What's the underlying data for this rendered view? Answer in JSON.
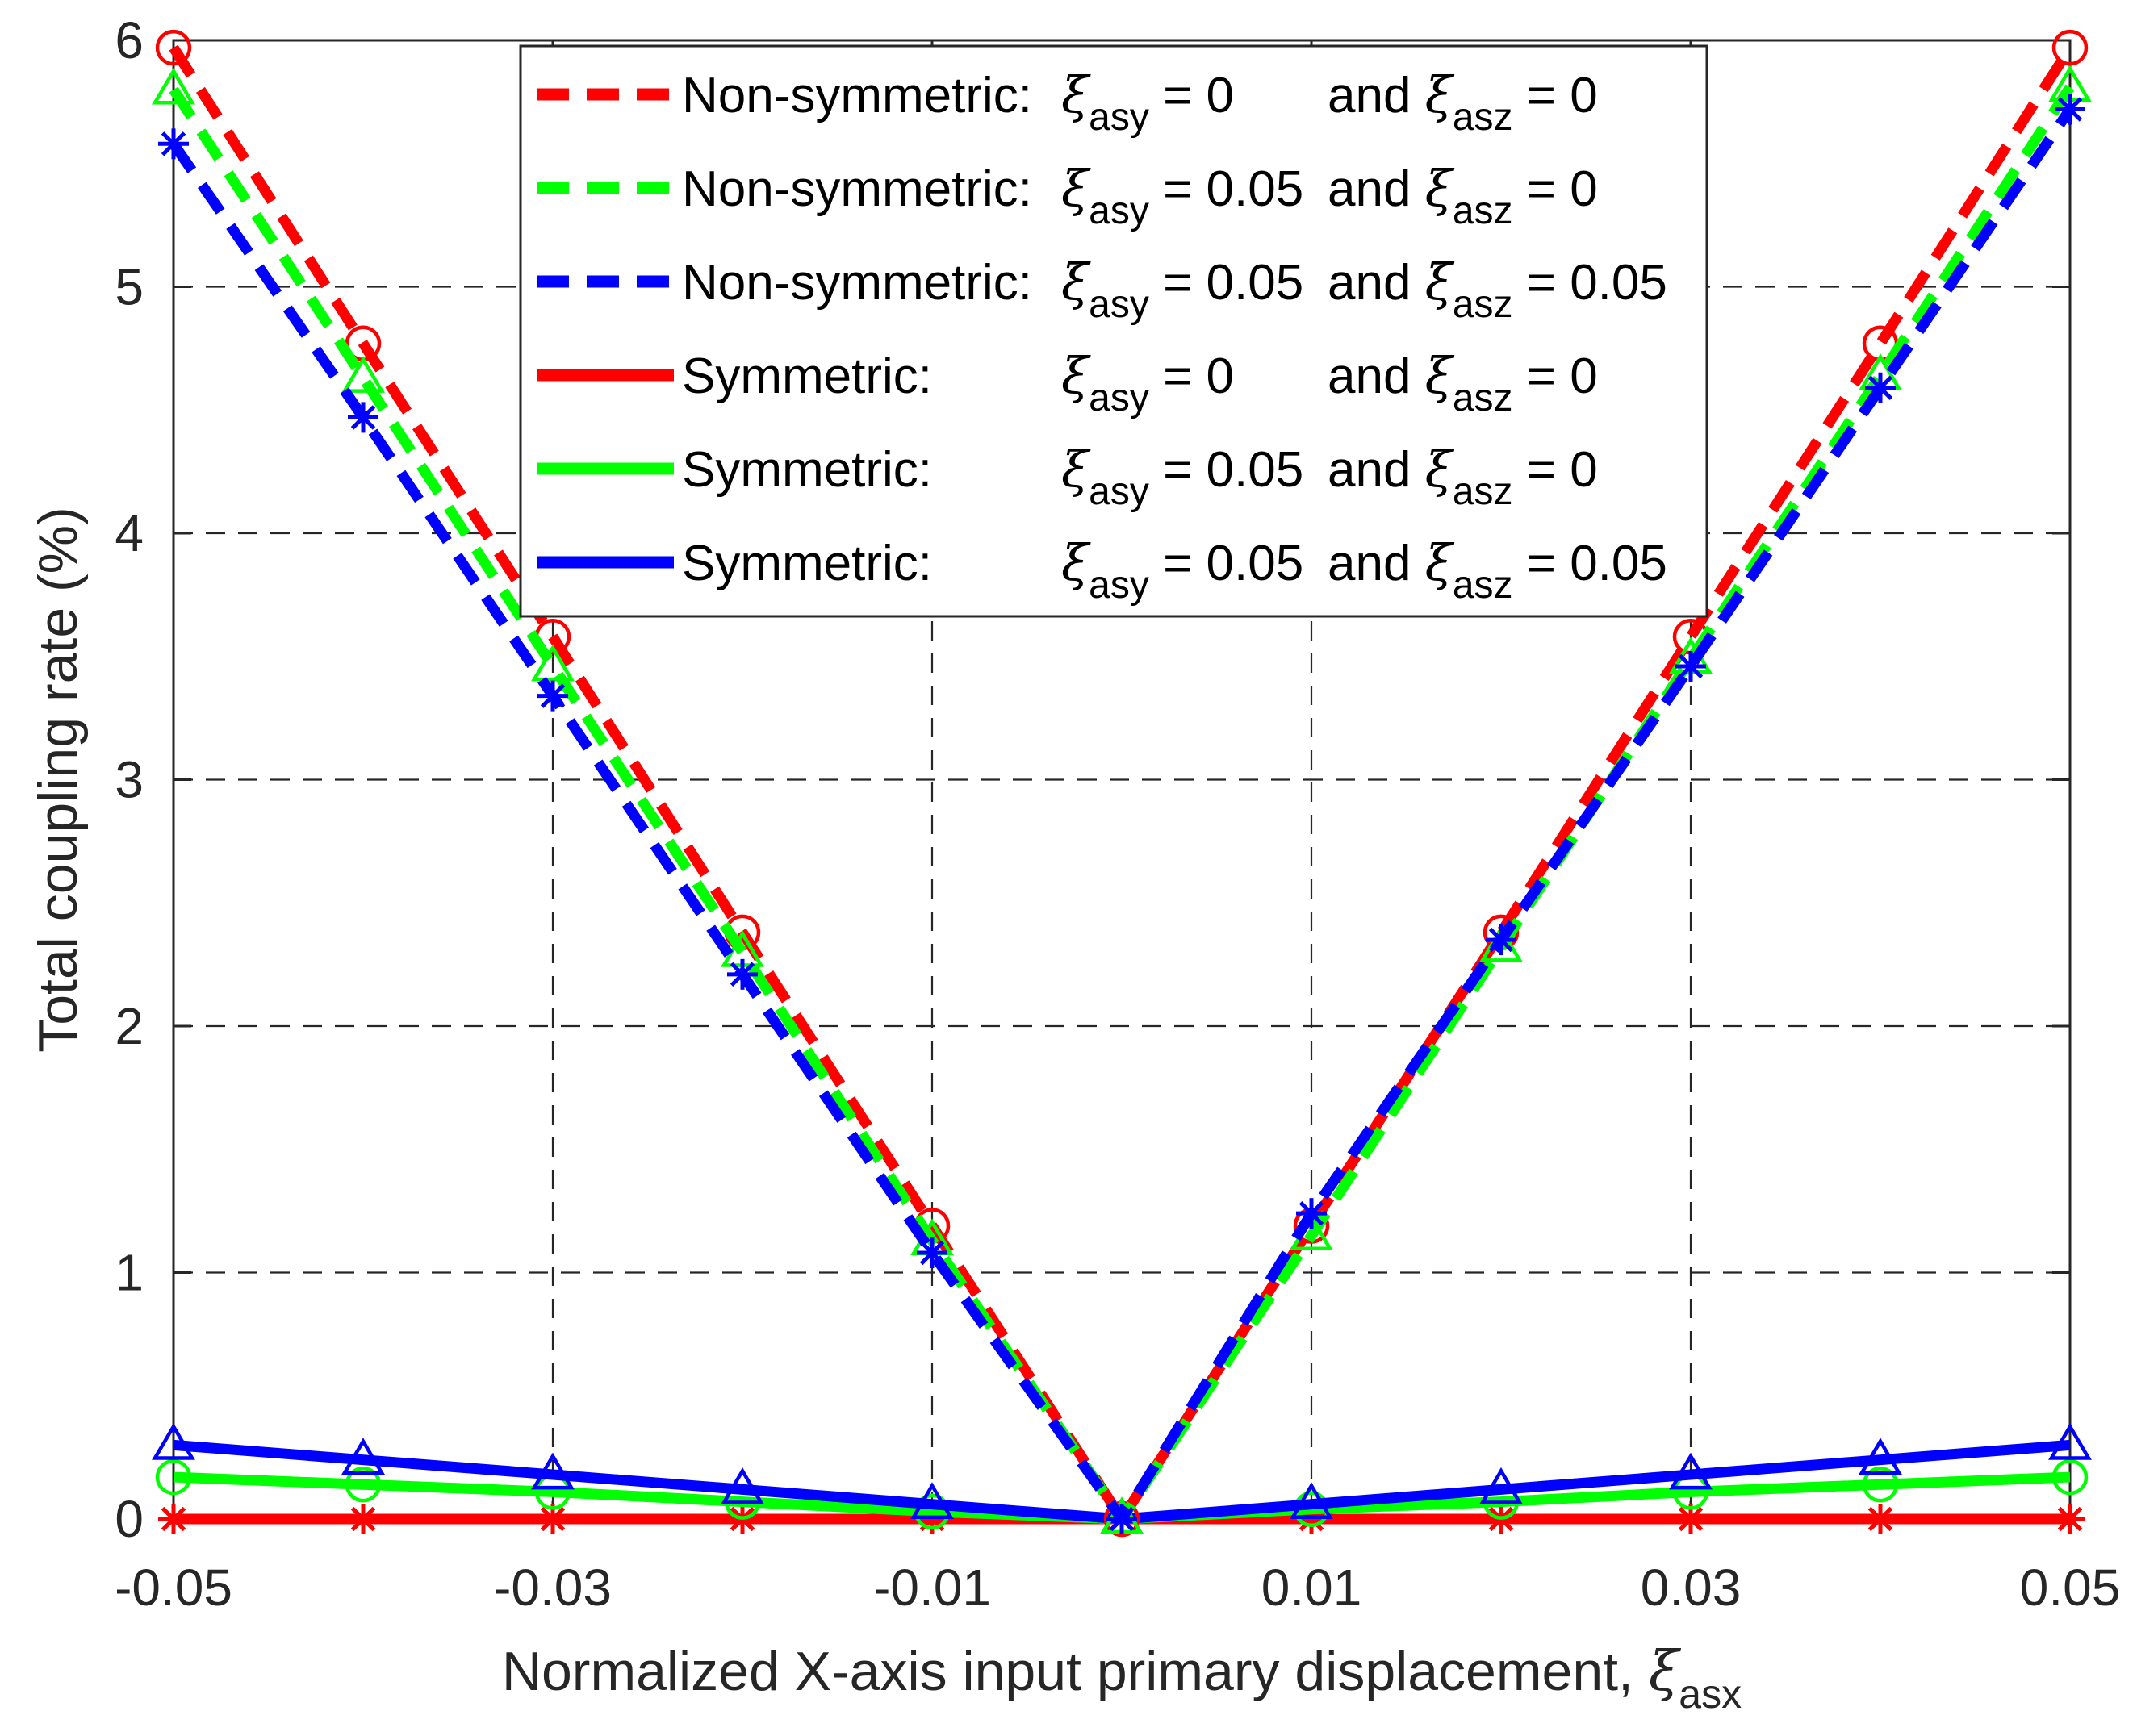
{
  "chart_data": {
    "type": "line",
    "title": "",
    "xlabel": "Normalized X-axis input primary displacement, ",
    "xlabel_symbol": "ξ",
    "xlabel_subscript": "asx",
    "ylabel": "Total coupling rate (%)",
    "xlim": [
      -0.05,
      0.05
    ],
    "ylim": [
      0,
      6
    ],
    "grid": true,
    "legend_position": "top-center",
    "x": [
      -0.05,
      -0.04,
      -0.03,
      -0.02,
      -0.01,
      0,
      0.01,
      0.02,
      0.03,
      0.04,
      0.05
    ],
    "x_ticks": [
      -0.05,
      -0.03,
      -0.01,
      0.01,
      0.03,
      0.05
    ],
    "x_tick_labels": [
      "-0.05",
      "-0.03",
      "-0.01",
      "0.01",
      "0.03",
      "0.05"
    ],
    "y_ticks": [
      0,
      1,
      2,
      3,
      4,
      5,
      6
    ],
    "y_tick_labels": [
      "0",
      "1",
      "2",
      "3",
      "4",
      "5",
      "6"
    ],
    "series": [
      {
        "name": "Non-symmetric: ξasy = 0 and ξasz = 0",
        "legend": {
          "prefix": "Non-symmetric:",
          "v1": " = 0",
          "v2": " = 0"
        },
        "color": "#ff0000",
        "line": "dashed",
        "marker": "circle",
        "values": [
          5.97,
          4.77,
          3.58,
          2.38,
          1.19,
          0,
          1.19,
          2.38,
          3.58,
          4.77,
          5.97
        ]
      },
      {
        "name": "Non-symmetric: ξasy = 0.05 and ξasz = 0",
        "legend": {
          "prefix": "Non-symmetric:",
          "v1": " = 0.05",
          "v2": " = 0"
        },
        "color": "#00ff00",
        "line": "dashed",
        "marker": "triangle",
        "values": [
          5.8,
          4.63,
          3.46,
          2.3,
          1.13,
          0,
          1.15,
          2.32,
          3.49,
          4.64,
          5.81
        ]
      },
      {
        "name": "Non-symmetric: ξasy = 0.05 and ξasz = 0.05",
        "legend": {
          "prefix": "Non-symmetric:",
          "v1": " = 0.05",
          "v2": " = 0.05"
        },
        "color": "#0000ff",
        "line": "dashed",
        "marker": "star",
        "values": [
          5.58,
          4.47,
          3.34,
          2.21,
          1.08,
          0,
          1.24,
          2.35,
          3.46,
          4.59,
          5.72
        ]
      },
      {
        "name": "Symmetric: ξasy = 0 and ξasz = 0",
        "legend": {
          "prefix": "Symmetric:",
          "v1": " = 0",
          "v2": " = 0"
        },
        "color": "#ff0000",
        "line": "solid",
        "marker": "star",
        "values": [
          0,
          0,
          0,
          0,
          0,
          0,
          0,
          0,
          0,
          0,
          0
        ]
      },
      {
        "name": "Symmetric: ξasy = 0.05 and ξasz = 0",
        "legend": {
          "prefix": "Symmetric:",
          "v1": " = 0.05",
          "v2": " = 0"
        },
        "color": "#00ff00",
        "line": "solid",
        "marker": "circle",
        "values": [
          0.17,
          0.14,
          0.11,
          0.07,
          0.03,
          0,
          0.04,
          0.07,
          0.11,
          0.14,
          0.17
        ]
      },
      {
        "name": "Symmetric: ξasy = 0.05 and ξasz = 0.05",
        "legend": {
          "prefix": "Symmetric:",
          "v1": " = 0.05",
          "v2": " = 0.05"
        },
        "color": "#0000ff",
        "line": "solid",
        "marker": "triangle",
        "values": [
          0.3,
          0.24,
          0.18,
          0.12,
          0.06,
          0,
          0.06,
          0.12,
          0.18,
          0.24,
          0.3
        ]
      }
    ],
    "legend_labels": {
      "symbol": "ξ",
      "sub_y": "asy",
      "sub_z": "asz",
      "and": "and"
    }
  }
}
